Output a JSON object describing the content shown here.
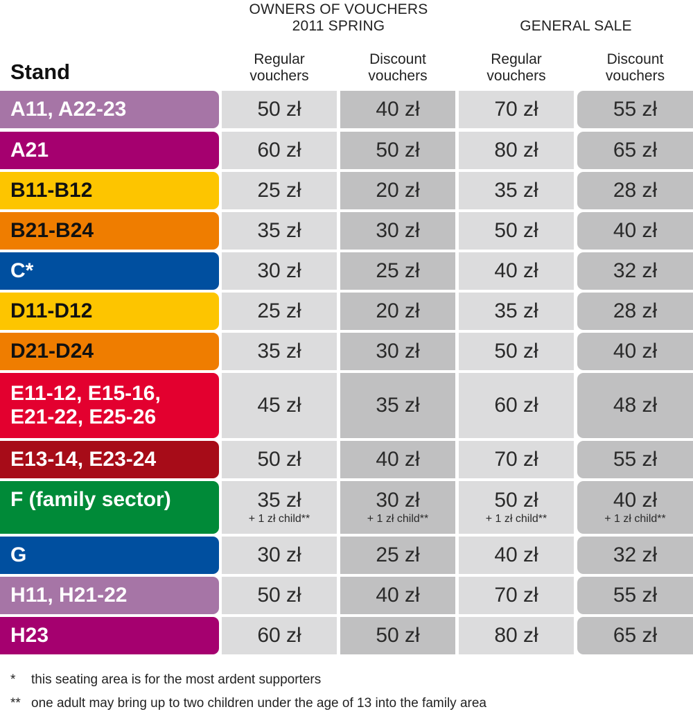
{
  "header": {
    "owners_line1": "OWNERS OF VOUCHERS",
    "owners_line2": "2011 SPRING",
    "general_sale": "GENERAL SALE",
    "stand_label": "Stand",
    "columns": [
      {
        "line1": "Regular",
        "line2": "vouchers"
      },
      {
        "line1": "Discount",
        "line2": "vouchers"
      },
      {
        "line1": "Regular",
        "line2": "vouchers"
      },
      {
        "line1": "Discount",
        "line2": "vouchers"
      }
    ]
  },
  "rows": [
    {
      "stand": "A11, A22-23",
      "color": "#a675a6",
      "prices": [
        "50 zł",
        "40 zł",
        "70 zł",
        "55 zł"
      ]
    },
    {
      "stand": "A21",
      "color": "#a5006f",
      "prices": [
        "60 zł",
        "50 zł",
        "80 zł",
        "65 zł"
      ]
    },
    {
      "stand": "B11-B12",
      "color": "#fdc500",
      "prices": [
        "25 zł",
        "20 zł",
        "35 zł",
        "28 zł"
      ]
    },
    {
      "stand": "B21-B24",
      "color": "#ef7d00",
      "prices": [
        "35 zł",
        "30 zł",
        "50 zł",
        "40 zł"
      ]
    },
    {
      "stand": "C*",
      "color": "#004f9f",
      "prices": [
        "30 zł",
        "25 zł",
        "40 zł",
        "32 zł"
      ]
    },
    {
      "stand": "D11-D12",
      "color": "#fdc500",
      "prices": [
        "25 zł",
        "20 zł",
        "35 zł",
        "28 zł"
      ]
    },
    {
      "stand": "D21-D24",
      "color": "#ef7d00",
      "prices": [
        "35 zł",
        "30 zł",
        "50 zł",
        "40 zł"
      ]
    },
    {
      "stand": "E11-12, E15-16,\nE21-22, E25-26",
      "color": "#e3002f",
      "prices": [
        "45 zł",
        "35 zł",
        "60 zł",
        "48 zł"
      ]
    },
    {
      "stand": "E13-14, E23-24",
      "color": "#a70c18",
      "prices": [
        "50 zł",
        "40 zł",
        "70 zł",
        "55 zł"
      ]
    },
    {
      "stand": "F (family sector)",
      "color": "#008a38",
      "prices": [
        "35 zł",
        "30 zł",
        "50 zł",
        "40 zł"
      ],
      "child": "+ 1 zł child**"
    },
    {
      "stand": "G",
      "color": "#004f9f",
      "prices": [
        "30 zł",
        "25 zł",
        "40 zł",
        "32 zł"
      ]
    },
    {
      "stand": "H11, H21-22",
      "color": "#a675a6",
      "prices": [
        "50 zł",
        "40 zł",
        "70 zł",
        "55 zł"
      ]
    },
    {
      "stand": "H23",
      "color": "#a5006f",
      "prices": [
        "60 zł",
        "50 zł",
        "80 zł",
        "65 zł"
      ]
    }
  ],
  "notes": [
    {
      "mark": "*",
      "text": "this seating area is for the most ardent supporters"
    },
    {
      "mark": "**",
      "text": "one adult may bring up to two children under the age of 13 into the family area"
    }
  ]
}
